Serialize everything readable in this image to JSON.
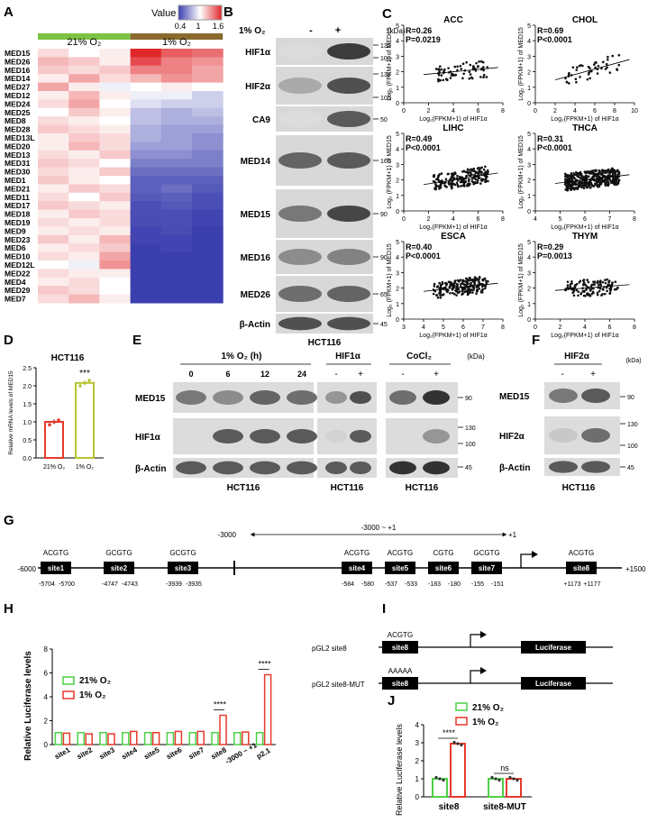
{
  "panels": {
    "A": "A",
    "B": "B",
    "C": "C",
    "D": "D",
    "E": "E",
    "F": "F",
    "G": "G",
    "H": "H",
    "I": "I",
    "J": "J"
  },
  "heatmap": {
    "legend_title": "Value",
    "legend_ticks": [
      "0.4",
      "1",
      "1.6"
    ],
    "groups": [
      "21% O₂",
      "1% O₂"
    ],
    "genes": [
      "MED15",
      "MED26",
      "MED16",
      "MED14",
      "MED27",
      "MED12",
      "MED24",
      "MED25",
      "MED8",
      "MED28",
      "MED13L",
      "MED20",
      "MED13",
      "MED31",
      "MED30",
      "MED1",
      "MED21",
      "MED11",
      "MED17",
      "MED18",
      "MED19",
      "MED9",
      "MED23",
      "MED6",
      "MED10",
      "MED12L",
      "MED22",
      "MED4",
      "MED29",
      "MED7"
    ],
    "values": [
      [
        1.1,
        1.0,
        1.05,
        1.65,
        1.45,
        1.4
      ],
      [
        1.2,
        1.15,
        1.05,
        1.5,
        1.35,
        1.3
      ],
      [
        1.15,
        1.1,
        1.15,
        1.35,
        1.35,
        1.25
      ],
      [
        1.05,
        1.25,
        1.1,
        1.2,
        1.3,
        1.25
      ],
      [
        1.25,
        1.05,
        0.95,
        1.0,
        1.05,
        1.0
      ],
      [
        1.05,
        1.2,
        1.05,
        0.95,
        0.95,
        0.85
      ],
      [
        1.1,
        1.25,
        1.0,
        0.9,
        0.85,
        0.85
      ],
      [
        1.0,
        1.15,
        1.05,
        0.8,
        0.75,
        0.8
      ],
      [
        1.1,
        1.05,
        1.0,
        0.8,
        0.75,
        0.75
      ],
      [
        1.15,
        1.1,
        1.05,
        0.75,
        0.7,
        0.7
      ],
      [
        1.05,
        1.15,
        1.1,
        0.75,
        0.7,
        0.65
      ],
      [
        1.05,
        1.2,
        1.1,
        0.7,
        0.7,
        0.65
      ],
      [
        1.1,
        1.05,
        1.15,
        0.65,
        0.65,
        0.6
      ],
      [
        1.15,
        1.1,
        1.0,
        0.6,
        0.6,
        0.6
      ],
      [
        1.1,
        1.05,
        1.15,
        0.55,
        0.55,
        0.55
      ],
      [
        1.15,
        1.05,
        1.0,
        0.5,
        0.5,
        0.5
      ],
      [
        1.05,
        1.15,
        1.1,
        0.5,
        0.55,
        0.48
      ],
      [
        1.1,
        1.0,
        1.15,
        0.48,
        0.5,
        0.45
      ],
      [
        1.15,
        1.1,
        1.05,
        0.45,
        0.48,
        0.45
      ],
      [
        1.05,
        1.15,
        1.1,
        0.45,
        0.45,
        0.42
      ],
      [
        1.1,
        1.05,
        1.1,
        0.44,
        0.45,
        0.42
      ],
      [
        1.05,
        1.1,
        1.05,
        0.42,
        0.44,
        0.4
      ],
      [
        1.15,
        1.05,
        1.2,
        0.42,
        0.42,
        0.4
      ],
      [
        1.05,
        1.1,
        1.15,
        0.4,
        0.42,
        0.4
      ],
      [
        1.1,
        1.05,
        1.25,
        0.4,
        0.4,
        0.4
      ],
      [
        1.0,
        0.95,
        1.3,
        0.4,
        0.4,
        0.4
      ],
      [
        1.1,
        1.05,
        1.05,
        0.4,
        0.4,
        0.4
      ],
      [
        1.05,
        1.1,
        1.0,
        0.4,
        0.4,
        0.4
      ],
      [
        1.15,
        1.1,
        1.0,
        0.4,
        0.4,
        0.4
      ],
      [
        1.1,
        1.2,
        1.05,
        0.4,
        0.4,
        0.4
      ]
    ],
    "colors": {
      "low": "#3b3fae",
      "mid": "#ffffff",
      "high": "#e0272a",
      "left_bar": "#7cc243",
      "right_bar": "#8b6a2e"
    }
  },
  "panelB": {
    "condition": "1% O₂",
    "minus": "-",
    "plus": "+",
    "kda": "(kDa)",
    "cell": "HCT116",
    "bands": [
      {
        "label": "HIF1α",
        "markers": [
          "130",
          "100"
        ]
      },
      {
        "label": "HIF2α",
        "markers": [
          "130",
          "100"
        ]
      },
      {
        "label": "CA9",
        "markers": [
          "50"
        ]
      },
      {
        "label": "MED14",
        "markers": [
          "160"
        ]
      },
      {
        "label": "MED15",
        "markers": [
          "90"
        ]
      },
      {
        "label": "MED16",
        "markers": [
          "90"
        ]
      },
      {
        "label": "MED26",
        "markers": [
          "65"
        ]
      },
      {
        "label": "β-Actin",
        "markers": [
          "45"
        ]
      }
    ]
  },
  "panelC": {
    "xlabel": "Log₂(FPKM+1) of HIF1α",
    "ylabel": "Log₂ (FPKM+1) of MED15",
    "plots": [
      {
        "title": "ACC",
        "r": "R=0.26",
        "p": "P=0.0219",
        "xticks": [
          "0",
          "2",
          "4",
          "6",
          "8"
        ],
        "yticks": [
          "0",
          "1",
          "2",
          "3",
          "4",
          "5"
        ]
      },
      {
        "title": "CHOL",
        "r": "R=0.69",
        "p": "P<0.0001",
        "xticks": [
          "0",
          "2",
          "4",
          "6",
          "8",
          "10"
        ],
        "yticks": [
          "0",
          "1",
          "2",
          "3",
          "4",
          "5"
        ]
      },
      {
        "title": "LIHC",
        "r": "R=0.49",
        "p": "P<0.0001",
        "xticks": [
          "0",
          "2",
          "4",
          "6",
          "8"
        ],
        "yticks": [
          "0",
          "1",
          "2",
          "3",
          "4",
          "5"
        ]
      },
      {
        "title": "THCA",
        "r": "R=0.31",
        "p": "P<0.0001",
        "xticks": [
          "4",
          "5",
          "6",
          "7",
          "8"
        ],
        "yticks": [
          "0",
          "1",
          "2",
          "3",
          "4",
          "5"
        ]
      },
      {
        "title": "ESCA",
        "r": "R=0.40",
        "p": "P<0.0001",
        "xticks": [
          "3",
          "4",
          "5",
          "6",
          "7",
          "8"
        ],
        "yticks": [
          "0",
          "1",
          "2",
          "3",
          "4",
          "5"
        ]
      },
      {
        "title": "THYM",
        "r": "R=0.29",
        "p": "P=0.0013",
        "xticks": [
          "0",
          "2",
          "4",
          "6",
          "8"
        ],
        "yticks": [
          "0",
          "1",
          "2",
          "3",
          "4",
          "5"
        ]
      }
    ]
  },
  "chart_data": [
    {
      "type": "bar",
      "title": "HCT116",
      "ylabel": "Relative mRNA levels of MED15",
      "categories": [
        "21% O₂",
        "1% O₂"
      ],
      "values": [
        1.0,
        2.08
      ],
      "errors": [
        0.06,
        0.05
      ],
      "points": [
        [
          0.92,
          1.0,
          1.05
        ],
        [
          2.0,
          2.08,
          2.15
        ]
      ],
      "ylim": [
        0,
        2.5
      ],
      "yticks": [
        "0.0",
        "0.5",
        "1.0",
        "1.5",
        "2.0",
        "2.5"
      ],
      "significance": "***",
      "colors": [
        "#e8392b",
        "#b5c42f"
      ]
    },
    {
      "type": "bar",
      "ylabel": "Relative Luciferase levels",
      "categories": [
        "site1",
        "site2",
        "site3",
        "site4",
        "site5",
        "site6",
        "site7",
        "site8",
        "-3000 ~ +1",
        "p2.1"
      ],
      "series": [
        {
          "name": "21% O₂",
          "values": [
            1.0,
            1.0,
            1.0,
            1.0,
            1.0,
            1.0,
            1.0,
            1.0,
            1.0,
            1.0
          ],
          "color": "#4cd147"
        },
        {
          "name": "1% O₂",
          "values": [
            0.95,
            0.9,
            0.9,
            1.1,
            1.0,
            1.1,
            1.1,
            2.45,
            1.05,
            5.85
          ],
          "color": "#e8392b"
        }
      ],
      "ylim": [
        0,
        8
      ],
      "yticks": [
        "0",
        "2",
        "4",
        "6",
        "8"
      ],
      "significance": [
        "",
        "",
        "",
        "",
        "",
        "",
        "",
        "****",
        "",
        "****"
      ]
    },
    {
      "type": "bar",
      "ylabel": "Relative Luciferase levels",
      "categories": [
        "site8",
        "site8-MUT"
      ],
      "series": [
        {
          "name": "21% O₂",
          "values": [
            1.0,
            1.0
          ],
          "color": "#4cd147"
        },
        {
          "name": "1% O₂",
          "values": [
            2.95,
            1.0
          ],
          "color": "#e8392b"
        }
      ],
      "ylim": [
        0,
        4
      ],
      "yticks": [
        "0",
        "1",
        "2",
        "3",
        "4"
      ],
      "significance": [
        "****",
        "ns"
      ]
    }
  ],
  "panelE": {
    "timecourse": "1% O₂ (h)",
    "times": [
      "0",
      "6",
      "12",
      "24"
    ],
    "hif1a": "HIF1α",
    "cocl2": "CoCl₂",
    "minus": "-",
    "plus": "+",
    "kda": "(kDa)",
    "rows": [
      "MED15",
      "HIF1α",
      "β-Actin"
    ],
    "markers": [
      "90",
      "130",
      "100",
      "45"
    ],
    "cell": "HCT116"
  },
  "panelF": {
    "treat": "HIF2α",
    "minus": "-",
    "plus": "+",
    "kda": "(kDa)",
    "rows": [
      "MED15",
      "HIF2α",
      "β-Actin"
    ],
    "markers": [
      "90",
      "130",
      "100",
      "45"
    ],
    "cell": "HCT116"
  },
  "panelG": {
    "range_label": "-3000 ~ +1",
    "left_label": "-3000",
    "right_label": "+1",
    "start": "-6000",
    "end": "+1500",
    "sites": [
      {
        "name": "site1",
        "seq": "ACGTG",
        "pos": [
          "-5704",
          "-5700"
        ]
      },
      {
        "name": "site2",
        "seq": "GCGTG",
        "pos": [
          "-4747",
          "-4743"
        ]
      },
      {
        "name": "site3",
        "seq": "GCGTG",
        "pos": [
          "-3939",
          "-3935"
        ]
      },
      {
        "name": "site4",
        "seq": "ACGTG",
        "pos": [
          "-584",
          "-580"
        ]
      },
      {
        "name": "site5",
        "seq": "ACGTG",
        "pos": [
          "-537",
          "-533"
        ]
      },
      {
        "name": "site6",
        "seq": "CGTG",
        "pos": [
          "-183",
          "-180"
        ]
      },
      {
        "name": "site7",
        "seq": "GCGTG",
        "pos": [
          "-155",
          "-151"
        ]
      },
      {
        "name": "site8",
        "seq": "ACGTG",
        "pos": [
          "+1173",
          "+1177"
        ]
      }
    ]
  },
  "panelI": {
    "constructs": [
      {
        "label": "pGL2 site8",
        "seq": "ACGTG",
        "site": "site8",
        "reporter": "Luciferase"
      },
      {
        "label": "pGL2 site8-MUT",
        "seq": "AAAAA",
        "site": "site8",
        "reporter": "Luciferase"
      }
    ]
  }
}
